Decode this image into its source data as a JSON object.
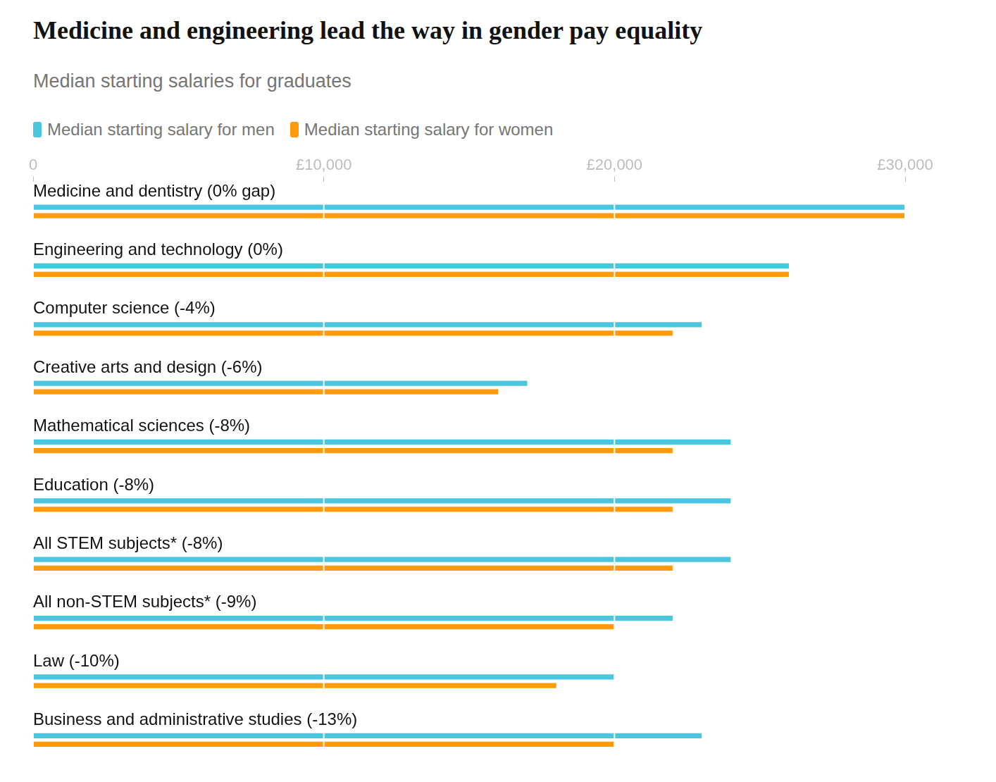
{
  "chart_data": {
    "type": "bar",
    "orientation": "horizontal",
    "title": "Medicine and engineering lead the way in gender pay equality",
    "subtitle": "Median starting salaries for graduates",
    "categories": [
      "Medicine and dentistry (0% gap)",
      "Engineering and technology (0%)",
      "Computer science (-4%)",
      "Creative arts and design (-6%)",
      "Mathematical sciences (-8%)",
      "Education (-8%)",
      "All STEM subjects* (-8%)",
      "All non-STEM subjects* (-9%)",
      "Law (-10%)",
      "Business and administrative studies (-13%)"
    ],
    "series": [
      {
        "name": "Median starting salary for men",
        "color": "#4bc6df",
        "values": [
          30000,
          26000,
          23000,
          17000,
          24000,
          24000,
          24000,
          22000,
          20000,
          23000
        ]
      },
      {
        "name": "Median starting salary for women",
        "color": "#ff9b0b",
        "values": [
          30000,
          26000,
          22000,
          16000,
          22000,
          22000,
          22000,
          20000,
          18000,
          20000
        ]
      }
    ],
    "xlim": [
      0,
      30000
    ],
    "xticks": [
      0,
      {
        "value": 10000,
        "label": "£10,000"
      },
      {
        "value": 20000,
        "label": "£20,000"
      },
      {
        "value": 30000,
        "label": "£30,000"
      }
    ],
    "grid": true,
    "legend": "top-left"
  }
}
